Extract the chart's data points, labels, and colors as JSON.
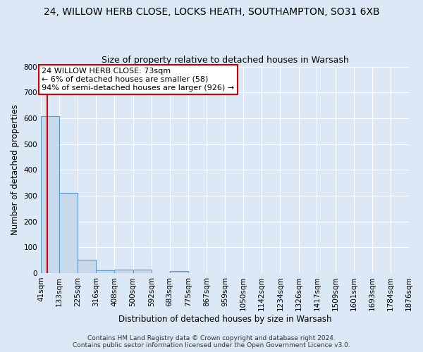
{
  "title_line1": "24, WILLOW HERB CLOSE, LOCKS HEATH, SOUTHAMPTON, SO31 6XB",
  "title_line2": "Size of property relative to detached houses in Warsash",
  "xlabel": "Distribution of detached houses by size in Warsash",
  "ylabel": "Number of detached properties",
  "bin_edges": [
    41,
    133,
    225,
    316,
    408,
    500,
    592,
    683,
    775,
    867,
    959,
    1050,
    1142,
    1234,
    1326,
    1417,
    1509,
    1601,
    1693,
    1784,
    1876
  ],
  "bin_labels": [
    "41sqm",
    "133sqm",
    "225sqm",
    "316sqm",
    "408sqm",
    "500sqm",
    "592sqm",
    "683sqm",
    "775sqm",
    "867sqm",
    "959sqm",
    "1050sqm",
    "1142sqm",
    "1234sqm",
    "1326sqm",
    "1417sqm",
    "1509sqm",
    "1601sqm",
    "1693sqm",
    "1784sqm",
    "1876sqm"
  ],
  "counts": [
    608,
    310,
    52,
    11,
    13,
    13,
    0,
    8,
    0,
    0,
    0,
    0,
    0,
    0,
    0,
    0,
    0,
    0,
    0,
    0
  ],
  "bar_facecolor": "#c9d9ec",
  "bar_edgecolor": "#5b9bd5",
  "property_value": 73,
  "vline_color": "#cc0000",
  "annotation_text": "24 WILLOW HERB CLOSE: 73sqm\n← 6% of detached houses are smaller (58)\n94% of semi-detached houses are larger (926) →",
  "annotation_box_edgecolor": "#cc0000",
  "annotation_box_facecolor": "#ffffff",
  "ylim": [
    0,
    800
  ],
  "yticks": [
    0,
    100,
    200,
    300,
    400,
    500,
    600,
    700,
    800
  ],
  "background_color": "#dce8f5",
  "plot_background_color": "#dce8f5",
  "footer_line1": "Contains HM Land Registry data © Crown copyright and database right 2024.",
  "footer_line2": "Contains public sector information licensed under the Open Government Licence v3.0.",
  "title_fontsize": 10,
  "subtitle_fontsize": 9,
  "axis_label_fontsize": 8.5,
  "tick_fontsize": 7.5,
  "annotation_fontsize": 8,
  "footer_fontsize": 6.5
}
